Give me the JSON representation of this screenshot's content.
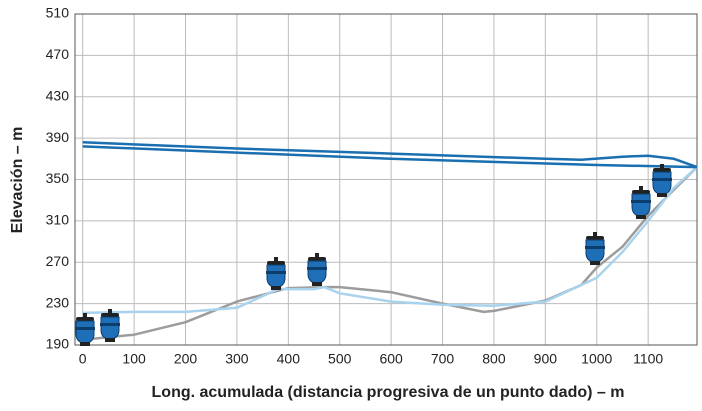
{
  "chart_data": {
    "type": "line",
    "xlabel": "Long. acumulada (distancia progresiva de un punto dado) – m",
    "ylabel": "Elevación – m",
    "xlim": [
      -15,
      1195
    ],
    "ylim": [
      190,
      510
    ],
    "xticks": [
      0,
      100,
      200,
      300,
      400,
      500,
      600,
      700,
      800,
      900,
      1000,
      1100
    ],
    "yticks": [
      190,
      230,
      270,
      310,
      350,
      390,
      430,
      470,
      510
    ],
    "grid": true,
    "series": [
      {
        "color": "#9c9c9c",
        "x": [
          0,
          100,
          200,
          300,
          400,
          470,
          500,
          600,
          700,
          780,
          800,
          900,
          970,
          1000,
          1050,
          1100,
          1150,
          1195
        ],
        "values": [
          195,
          200,
          212,
          232,
          245,
          246,
          246,
          241,
          230,
          222,
          223,
          233,
          248,
          265,
          285,
          315,
          340,
          362
        ]
      },
      {
        "color": "#a8d2ee",
        "x": [
          0,
          100,
          200,
          300,
          380,
          450,
          470,
          500,
          600,
          700,
          800,
          900,
          1000,
          1050,
          1100,
          1150,
          1195
        ],
        "values": [
          221,
          222,
          222,
          226,
          244,
          244,
          246,
          240,
          232,
          229,
          228,
          232,
          255,
          280,
          310,
          342,
          362
        ]
      },
      {
        "color": "#1a6fb0",
        "x": [
          0,
          300,
          600,
          900,
          970,
          1050,
          1100,
          1150,
          1195
        ],
        "values": [
          386,
          380,
          375,
          370,
          369,
          372,
          373,
          370,
          362
        ]
      },
      {
        "color": "#1a6fb0",
        "x": [
          0,
          600,
          1000,
          1195
        ],
        "values": [
          382,
          370,
          364,
          362
        ]
      }
    ]
  }
}
